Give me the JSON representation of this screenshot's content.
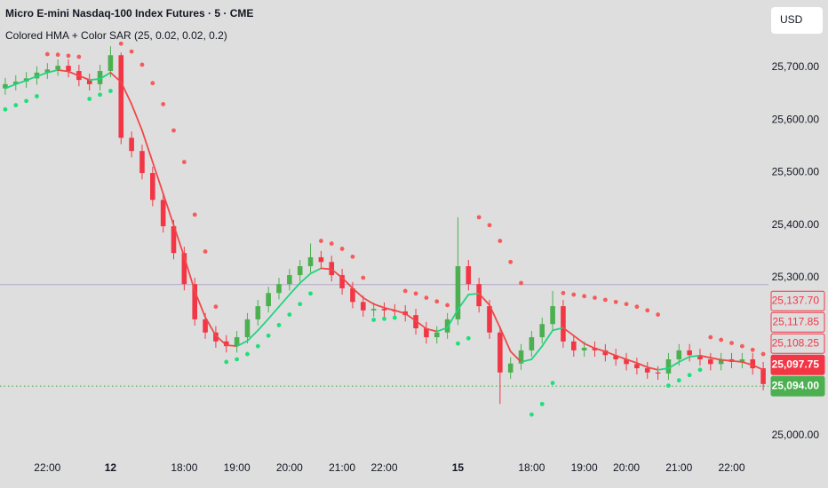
{
  "chart_data": {
    "type": "candlestick",
    "title": "Micro E-mini Nasdaq-100 Index Futures · 5 · CME",
    "indicator": "Colored HMA + Color SAR (25, 0.02, 0.02, 0.2)",
    "currency": "USD",
    "categories": [
      null,
      null,
      null,
      null,
      "22:00",
      null,
      null,
      null,
      null,
      null,
      "12",
      null,
      null,
      null,
      null,
      null,
      null,
      "18:00",
      null,
      null,
      null,
      null,
      "19:00",
      null,
      null,
      null,
      null,
      "20:00",
      null,
      null,
      null,
      null,
      "21:00",
      null,
      null,
      null,
      "22:00",
      null,
      null,
      null,
      null,
      null,
      null,
      "15",
      null,
      null,
      null,
      null,
      null,
      null,
      "18:00",
      null,
      null,
      null,
      null,
      "19:00",
      null,
      null,
      null,
      "20:00",
      null,
      null,
      null,
      null,
      "21:00",
      null,
      null,
      null,
      null,
      "22:00",
      null,
      null,
      null
    ],
    "open": [
      25660,
      25668,
      25673,
      25679,
      25690,
      25696,
      25703,
      25693,
      25676,
      25668,
      25693,
      25723,
      25566,
      25541,
      25499,
      25448,
      25398,
      25347,
      25288,
      25221,
      25196,
      25179,
      25170,
      25187,
      25221,
      25246,
      25271,
      25288,
      25305,
      25322,
      25339,
      25330,
      25305,
      25280,
      25254,
      25238,
      25241,
      25238,
      25236,
      25229,
      25204,
      25187,
      25196,
      25221,
      25322,
      25288,
      25246,
      25196,
      25120,
      25137,
      25162,
      25187,
      25212,
      25246,
      25179,
      25162,
      25167,
      25162,
      25153,
      25145,
      25136,
      25128,
      25120,
      25118,
      25145,
      25162,
      25153,
      25145,
      25136,
      25145,
      25140,
      25145,
      25128
    ],
    "high": [
      25680,
      25685,
      25691,
      25702,
      25708,
      25715,
      25715,
      25705,
      25688,
      25705,
      25740,
      25728,
      25578,
      25553,
      25511,
      25460,
      25410,
      25359,
      25300,
      25233,
      25208,
      25191,
      25199,
      25233,
      25258,
      25283,
      25300,
      25317,
      25334,
      25365,
      25351,
      25342,
      25317,
      25292,
      25266,
      25253,
      25253,
      25250,
      25248,
      25241,
      25216,
      25208,
      25233,
      25415,
      25334,
      25300,
      25258,
      25208,
      25149,
      25174,
      25199,
      25224,
      25275,
      25258,
      25191,
      25179,
      25179,
      25174,
      25165,
      25157,
      25148,
      25140,
      25132,
      25157,
      25174,
      25174,
      25165,
      25157,
      25157,
      25157,
      25157,
      25157,
      25140
    ],
    "low": [
      25648,
      25656,
      25661,
      25667,
      25678,
      25684,
      25681,
      25664,
      25656,
      25656,
      25681,
      25554,
      25529,
      25487,
      25436,
      25386,
      25335,
      25276,
      25209,
      25184,
      25167,
      25158,
      25158,
      25175,
      25209,
      25234,
      25259,
      25276,
      25293,
      25310,
      25318,
      25293,
      25268,
      25242,
      25226,
      25226,
      25226,
      25224,
      25217,
      25192,
      25175,
      25175,
      25184,
      25210,
      25276,
      25234,
      25184,
      25060,
      25108,
      25125,
      25150,
      25175,
      25200,
      25167,
      25150,
      25150,
      25150,
      25141,
      25133,
      25124,
      25116,
      25108,
      25106,
      25106,
      25133,
      25141,
      25133,
      25124,
      25124,
      25128,
      25128,
      25116,
      25086
    ],
    "close": [
      25668,
      25673,
      25679,
      25690,
      25696,
      25703,
      25693,
      25676,
      25668,
      25693,
      25723,
      25566,
      25541,
      25499,
      25448,
      25398,
      25347,
      25288,
      25221,
      25196,
      25179,
      25170,
      25187,
      25221,
      25246,
      25271,
      25288,
      25305,
      25322,
      25339,
      25330,
      25305,
      25280,
      25254,
      25238,
      25241,
      25238,
      25236,
      25229,
      25204,
      25187,
      25196,
      25221,
      25322,
      25288,
      25246,
      25196,
      25120,
      25137,
      25162,
      25187,
      25212,
      25246,
      25179,
      25162,
      25167,
      25162,
      25153,
      25145,
      25136,
      25128,
      25120,
      25118,
      25145,
      25162,
      25153,
      25145,
      25136,
      25145,
      25140,
      25145,
      25128,
      25098
    ],
    "up_color": "#4caf50",
    "down_color": "#f23645",
    "hma": [
      25660,
      25668,
      25675,
      25683,
      25690,
      25695,
      25692,
      25684,
      25676,
      25678,
      25690,
      25672,
      25630,
      25580,
      25520,
      25460,
      25400,
      25340,
      25275,
      25225,
      25190,
      25172,
      25170,
      25180,
      25200,
      25222,
      25245,
      25268,
      25290,
      25308,
      25318,
      25316,
      25300,
      25280,
      25262,
      25250,
      25243,
      25238,
      25232,
      25218,
      25203,
      25198,
      25205,
      25240,
      25268,
      25270,
      25248,
      25205,
      25160,
      25140,
      25145,
      25170,
      25200,
      25205,
      25190,
      25175,
      25166,
      25160,
      25152,
      25145,
      25138,
      25130,
      25125,
      25128,
      25140,
      25150,
      25152,
      25148,
      25144,
      25142,
      25140,
      25134,
      25125
    ],
    "hma_rising_color": "#22d37f",
    "hma_falling_color": "#f04848",
    "sar": [
      25620,
      25628,
      25636,
      25645,
      25725,
      25724,
      25722,
      25720,
      25640,
      25648,
      25655,
      25745,
      25730,
      25705,
      25670,
      25630,
      25580,
      25520,
      25420,
      25350,
      25245,
      25140,
      25145,
      25155,
      25170,
      25190,
      25210,
      25230,
      25250,
      25270,
      25370,
      25365,
      25355,
      25340,
      25300,
      25220,
      25222,
      25224,
      25275,
      25270,
      25262,
      25255,
      25248,
      25175,
      25185,
      25415,
      25400,
      25370,
      25330,
      25290,
      25040,
      25060,
      25100,
      25271,
      25268,
      25265,
      25262,
      25258,
      25254,
      25250,
      25245,
      25238,
      25230,
      25095,
      25105,
      25115,
      25125,
      25187,
      25182,
      25176,
      25170,
      25163,
      25155
    ],
    "sar_below_color": "#1ee07a",
    "sar_above_color": "#f75a5a",
    "previous_close_line": 25287,
    "ylim": [
      24951,
      25828
    ],
    "yticks": [
      {
        "value": 25000,
        "label": "25,000.00"
      },
      {
        "value": 25300,
        "label": "25,300.00"
      },
      {
        "value": 25400,
        "label": "25,400.00"
      },
      {
        "value": 25500,
        "label": "25,500.00"
      },
      {
        "value": 25600,
        "label": "25,600.00"
      },
      {
        "value": 25700,
        "label": "25,700.00"
      }
    ],
    "price_labels": [
      {
        "value": 25137.7,
        "label": "25,137.70",
        "color": "#f23645",
        "filled": false
      },
      {
        "value": 25117.85,
        "label": "25,117.85",
        "color": "#f23645",
        "filled": false
      },
      {
        "value": 25108.25,
        "label": "25,108.25",
        "color": "#f23645",
        "filled": false
      },
      {
        "value": 25097.75,
        "label": "25,097.75",
        "color": "#f23645",
        "filled": true
      },
      {
        "value": 25094,
        "label": "25,094.00",
        "color": "#4caf50",
        "filled": true
      }
    ]
  }
}
